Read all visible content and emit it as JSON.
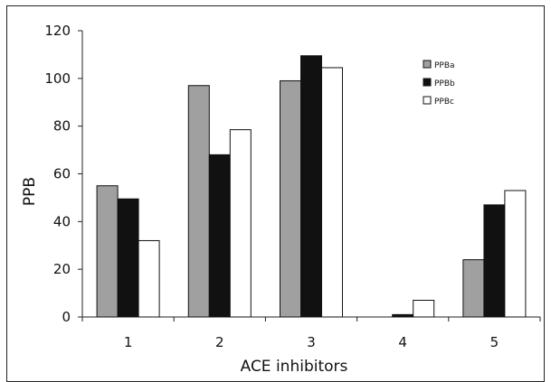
{
  "chart_data": {
    "type": "bar",
    "title": "",
    "xlabel": "ACE inhibitors",
    "ylabel": "PPB",
    "categories": [
      "1",
      "2",
      "3",
      "4",
      "5"
    ],
    "ylim": [
      0,
      120
    ],
    "yticks": [
      0,
      20,
      40,
      60,
      80,
      100,
      120
    ],
    "grid": false,
    "legend_position": "top-right",
    "series": [
      {
        "name": "PPBa",
        "color": "#a0a0a0",
        "values": [
          55,
          97,
          99,
          0,
          24
        ]
      },
      {
        "name": "PPBb",
        "color": "#111111",
        "values": [
          49.5,
          68,
          109.5,
          1,
          47
        ]
      },
      {
        "name": "PPBc",
        "color": "#ffffff",
        "values": [
          32,
          78.5,
          104.5,
          7,
          53
        ]
      }
    ]
  }
}
